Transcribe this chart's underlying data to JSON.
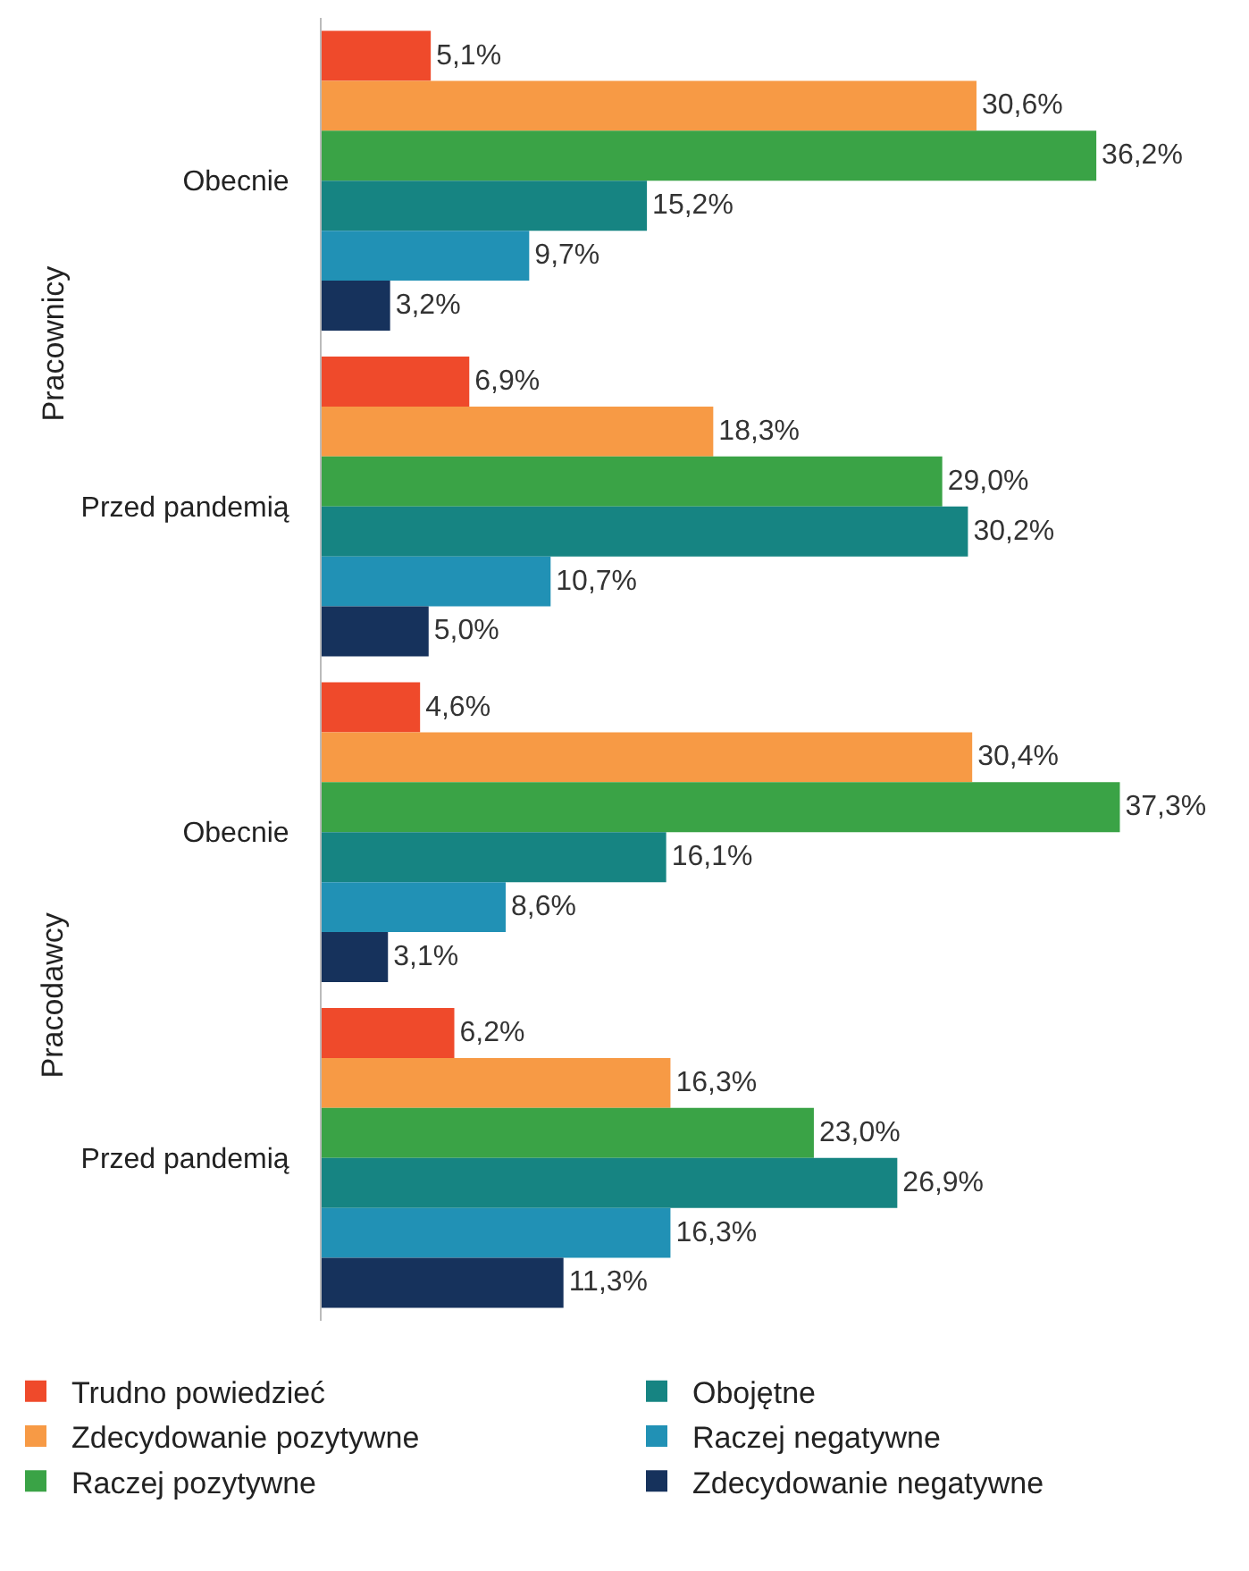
{
  "chart_data": {
    "type": "bar",
    "orientation": "horizontal",
    "categories": [
      "Obecnie",
      "Przed pandemią",
      "Obecnie",
      "Przed pandemią"
    ],
    "annotations": [
      "Pracownicy",
      "Pracodawcy"
    ],
    "series": [
      {
        "name": "Trudno powiedzieć",
        "color": "#ef4a2b",
        "values": [
          5.1,
          6.9,
          4.6,
          6.2
        ],
        "value_labels": [
          "5,1%",
          "6,9%",
          "4,6%",
          "6,2%"
        ]
      },
      {
        "name": "Zdecydowanie pozytywne",
        "color": "#f79a45",
        "values": [
          30.6,
          18.3,
          30.4,
          16.3
        ],
        "value_labels": [
          "30,6%",
          "18,3%",
          "30,4%",
          "16,3%"
        ]
      },
      {
        "name": "Raczej pozytywne",
        "color": "#3aa346",
        "values": [
          36.2,
          29.0,
          37.3,
          23.0
        ],
        "value_labels": [
          "36,2%",
          "29,0%",
          "37,3%",
          "23,0%"
        ]
      },
      {
        "name": "Obojętne",
        "color": "#168482",
        "values": [
          15.2,
          30.2,
          16.1,
          26.9
        ],
        "value_labels": [
          "15,2%",
          "30,2%",
          "16,1%",
          "26,9%"
        ]
      },
      {
        "name": "Raczej negatywne",
        "color": "#2191b5",
        "values": [
          9.7,
          10.7,
          8.6,
          16.3
        ],
        "value_labels": [
          "9,7%",
          "10,7%",
          "8,6%",
          "16,3%"
        ]
      },
      {
        "name": "Zdecydowanie negatywne",
        "color": "#16325c",
        "values": [
          3.2,
          5.0,
          3.1,
          11.3
        ],
        "value_labels": [
          "3,2%",
          "5,0%",
          "3,1%",
          "11,3%"
        ]
      }
    ],
    "xlim": [
      0,
      43
    ],
    "legend": "bottom"
  }
}
